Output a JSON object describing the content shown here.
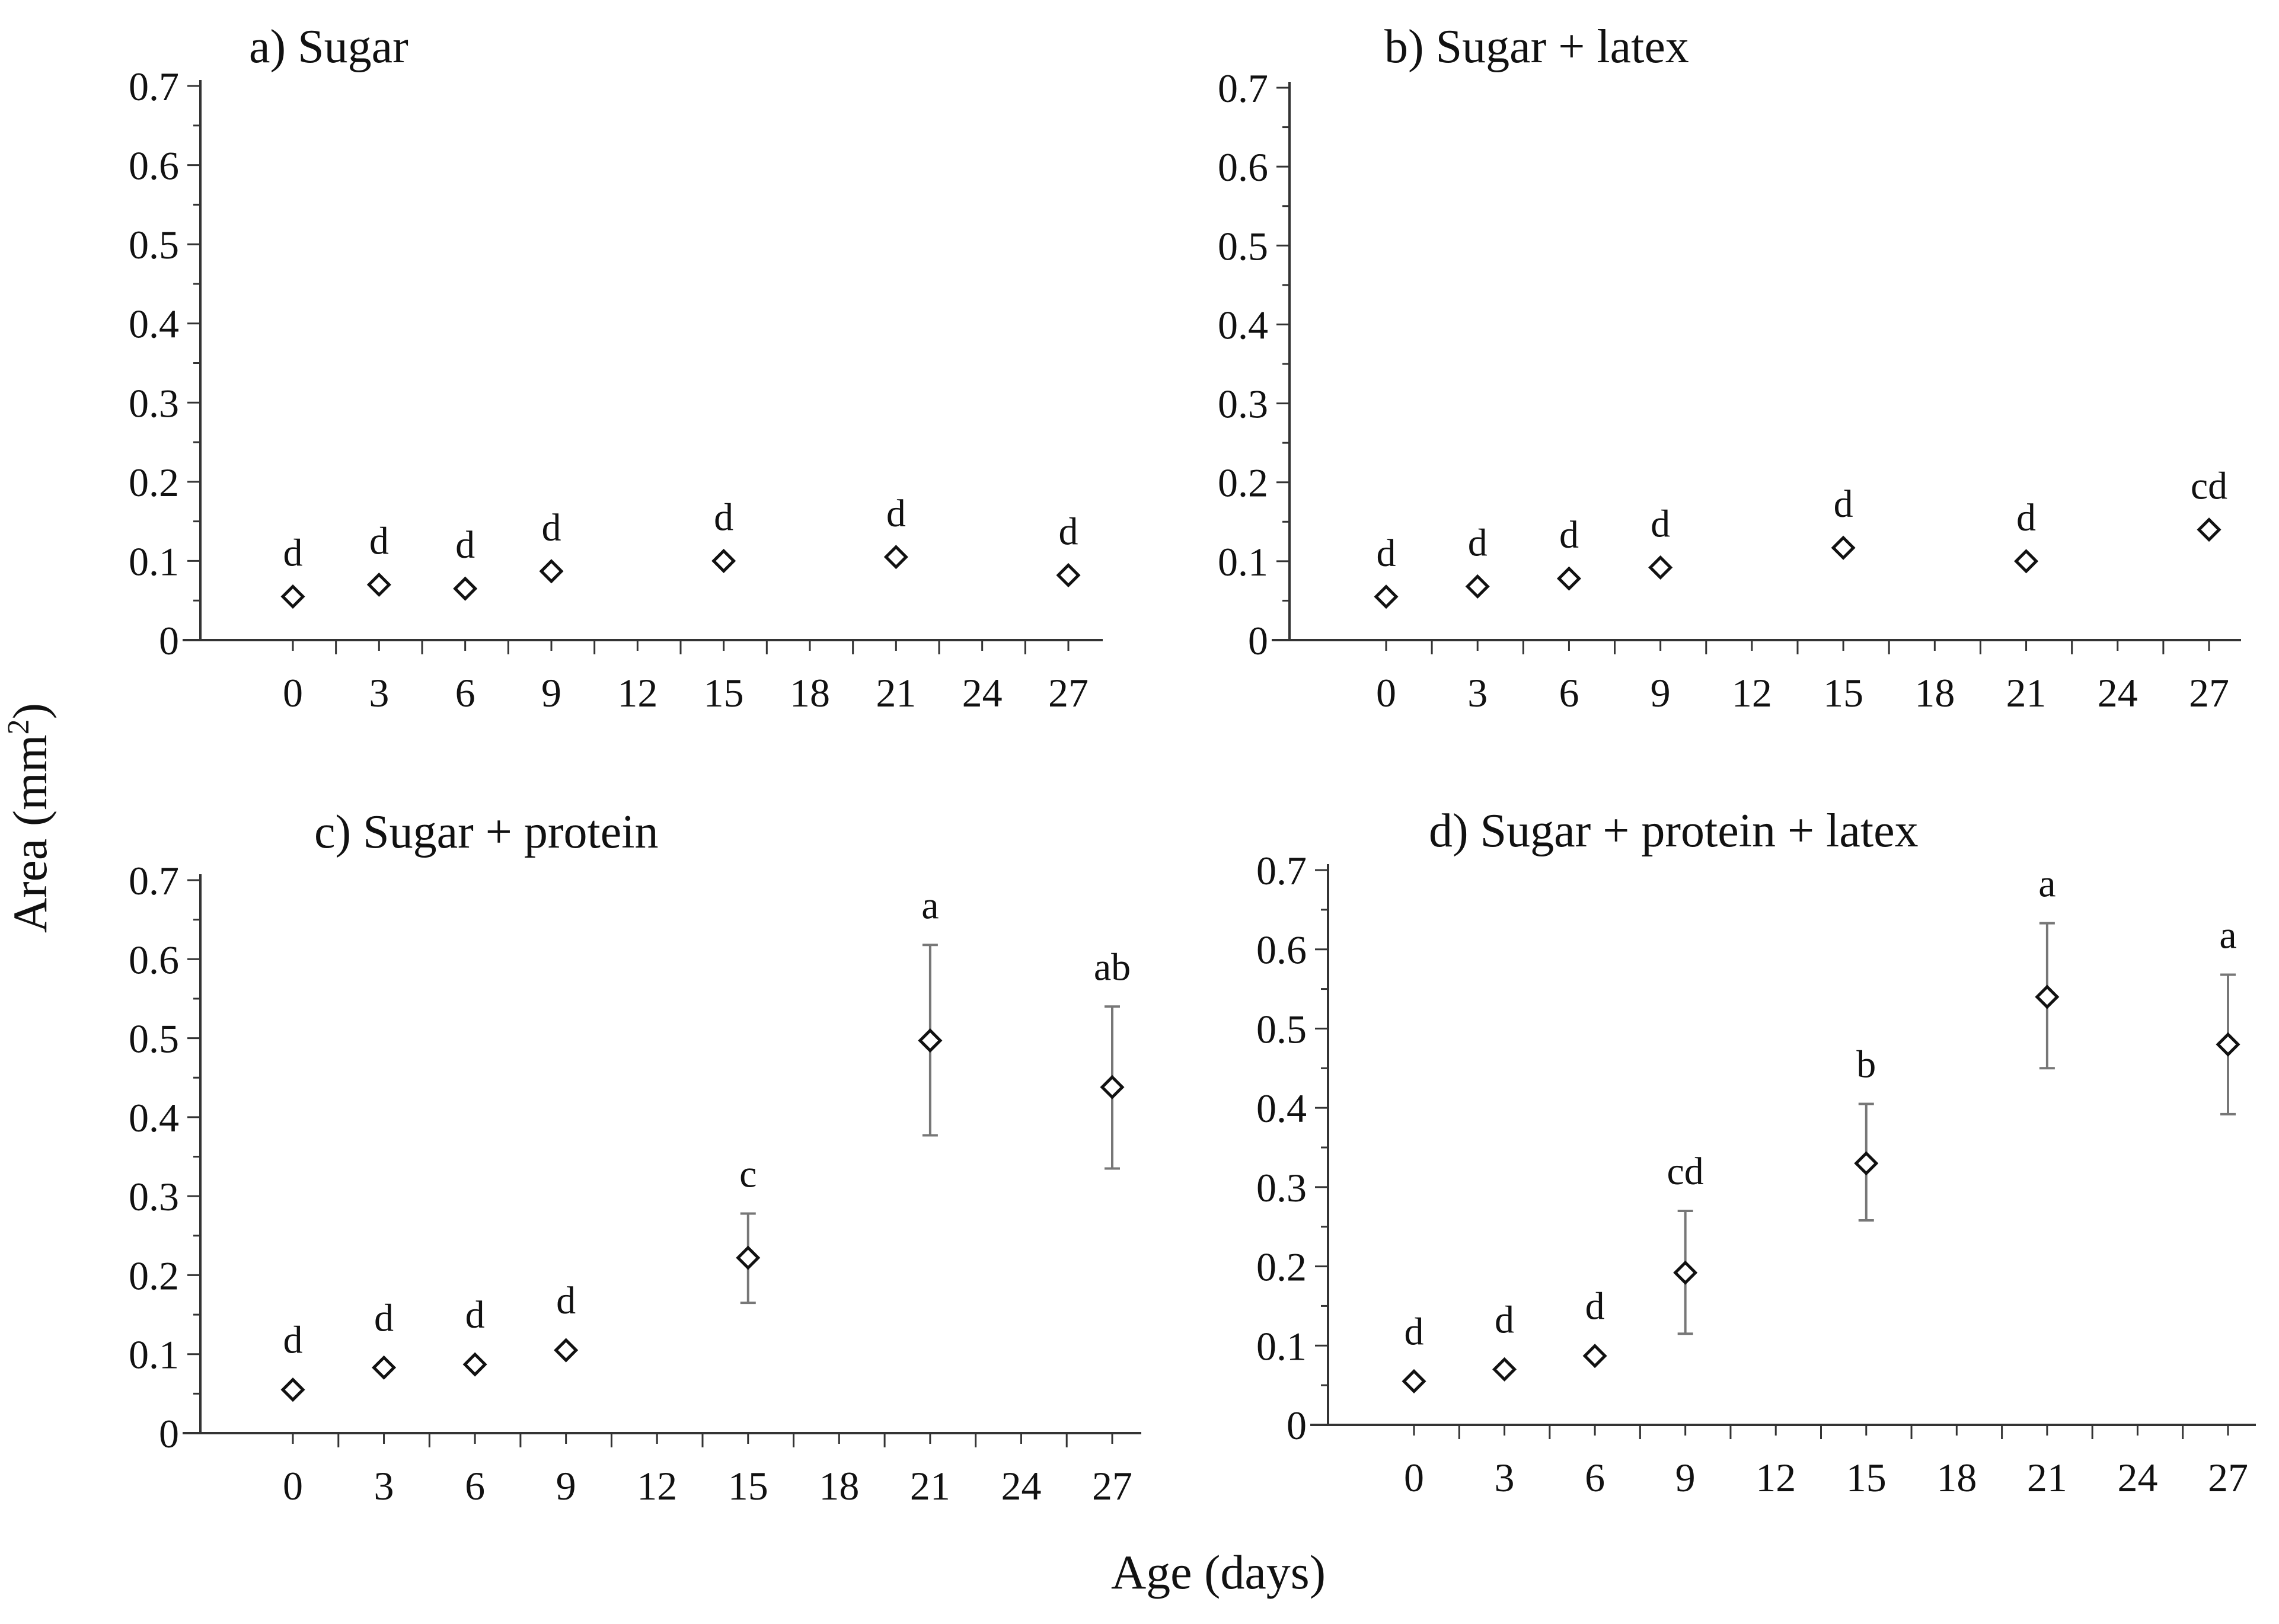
{
  "figure": {
    "ylabel": "Area (mm",
    "ylabel_sup": "2",
    "ylabel_close": ")",
    "xlabel": "Age (days)"
  },
  "chart_data": [
    {
      "type": "scatter",
      "title": "a) Sugar",
      "xlabel": "Age (days)",
      "ylabel": "Area (mm2)",
      "xticks": [
        0,
        3,
        6,
        9,
        12,
        15,
        18,
        21,
        24,
        27
      ],
      "ylim": [
        0,
        0.7
      ],
      "yticks": [
        "0",
        "0.1",
        "0.2",
        "0.3",
        "0.4",
        "0.5",
        "0.6",
        "0.7"
      ],
      "points": [
        {
          "x": 0,
          "y": 0.055,
          "err_low": 0.055,
          "err_high": 0.055,
          "label": "d"
        },
        {
          "x": 3,
          "y": 0.07,
          "err_low": 0.07,
          "err_high": 0.07,
          "label": "d"
        },
        {
          "x": 6,
          "y": 0.065,
          "err_low": 0.065,
          "err_high": 0.065,
          "label": "d"
        },
        {
          "x": 9,
          "y": 0.087,
          "err_low": 0.087,
          "err_high": 0.087,
          "label": "d"
        },
        {
          "x": 15,
          "y": 0.1,
          "err_low": 0.1,
          "err_high": 0.1,
          "label": "d"
        },
        {
          "x": 21,
          "y": 0.105,
          "err_low": 0.105,
          "err_high": 0.105,
          "label": "d"
        },
        {
          "x": 27,
          "y": 0.082,
          "err_low": 0.082,
          "err_high": 0.082,
          "label": "d"
        }
      ]
    },
    {
      "type": "scatter",
      "title": "b) Sugar + latex",
      "xlabel": "Age (days)",
      "ylabel": "Area (mm2)",
      "xticks": [
        0,
        3,
        6,
        9,
        12,
        15,
        18,
        21,
        24,
        27
      ],
      "ylim": [
        0,
        0.7
      ],
      "yticks": [
        "0",
        "0.1",
        "0.2",
        "0.3",
        "0.4",
        "0.5",
        "0.6",
        "0.7"
      ],
      "points": [
        {
          "x": 0,
          "y": 0.055,
          "err_low": 0.055,
          "err_high": 0.055,
          "label": "d"
        },
        {
          "x": 3,
          "y": 0.068,
          "err_low": 0.068,
          "err_high": 0.068,
          "label": "d"
        },
        {
          "x": 6,
          "y": 0.078,
          "err_low": 0.078,
          "err_high": 0.078,
          "label": "d"
        },
        {
          "x": 9,
          "y": 0.092,
          "err_low": 0.092,
          "err_high": 0.092,
          "label": "d"
        },
        {
          "x": 15,
          "y": 0.117,
          "err_low": 0.117,
          "err_high": 0.117,
          "label": "d"
        },
        {
          "x": 21,
          "y": 0.1,
          "err_low": 0.1,
          "err_high": 0.1,
          "label": "d"
        },
        {
          "x": 27,
          "y": 0.14,
          "err_low": 0.14,
          "err_high": 0.14,
          "label": "cd"
        }
      ]
    },
    {
      "type": "scatter",
      "title": "c) Sugar + protein",
      "xlabel": "Age (days)",
      "ylabel": "Area (mm2)",
      "xticks": [
        0,
        3,
        6,
        9,
        12,
        15,
        18,
        21,
        24,
        27
      ],
      "ylim": [
        0,
        0.7
      ],
      "yticks": [
        "0",
        "0.1",
        "0.2",
        "0.3",
        "0.4",
        "0.5",
        "0.6",
        "0.7"
      ],
      "points": [
        {
          "x": 0,
          "y": 0.055,
          "err_low": 0.055,
          "err_high": 0.055,
          "label": "d"
        },
        {
          "x": 3,
          "y": 0.083,
          "err_low": 0.083,
          "err_high": 0.083,
          "label": "d"
        },
        {
          "x": 6,
          "y": 0.087,
          "err_low": 0.087,
          "err_high": 0.087,
          "label": "d"
        },
        {
          "x": 9,
          "y": 0.105,
          "err_low": 0.105,
          "err_high": 0.105,
          "label": "d"
        },
        {
          "x": 15,
          "y": 0.222,
          "err_low": 0.165,
          "err_high": 0.278,
          "label": "c"
        },
        {
          "x": 21,
          "y": 0.497,
          "err_low": 0.377,
          "err_high": 0.618,
          "label": "a"
        },
        {
          "x": 27,
          "y": 0.438,
          "err_low": 0.335,
          "err_high": 0.54,
          "label": "ab"
        }
      ]
    },
    {
      "type": "scatter",
      "title": "d) Sugar + protein + latex",
      "xlabel": "Age (days)",
      "ylabel": "Area (mm2)",
      "xticks": [
        0,
        3,
        6,
        9,
        12,
        15,
        18,
        21,
        24,
        27
      ],
      "ylim": [
        0,
        0.7
      ],
      "yticks": [
        "0",
        "0.1",
        "0.2",
        "0.3",
        "0.4",
        "0.5",
        "0.6",
        "0.7"
      ],
      "points": [
        {
          "x": 0,
          "y": 0.055,
          "err_low": 0.055,
          "err_high": 0.055,
          "label": "d"
        },
        {
          "x": 3,
          "y": 0.07,
          "err_low": 0.07,
          "err_high": 0.07,
          "label": "d"
        },
        {
          "x": 6,
          "y": 0.087,
          "err_low": 0.087,
          "err_high": 0.087,
          "label": "d"
        },
        {
          "x": 9,
          "y": 0.192,
          "err_low": 0.115,
          "err_high": 0.27,
          "label": "cd"
        },
        {
          "x": 15,
          "y": 0.33,
          "err_low": 0.258,
          "err_high": 0.405,
          "label": "b"
        },
        {
          "x": 21,
          "y": 0.54,
          "err_low": 0.45,
          "err_high": 0.633,
          "label": "a"
        },
        {
          "x": 27,
          "y": 0.48,
          "err_low": 0.392,
          "err_high": 0.568,
          "label": "a"
        }
      ]
    }
  ]
}
